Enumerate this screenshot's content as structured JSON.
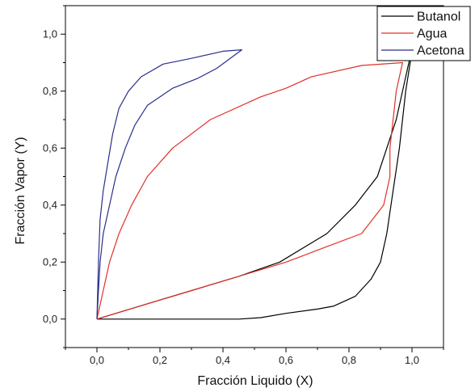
{
  "chart_data": {
    "type": "line",
    "xlabel": "Fracción Liquido (X)",
    "ylabel": "Fracción Vapor (Y)",
    "xlim": [
      -0.1,
      1.1
    ],
    "ylim": [
      -0.1,
      1.1
    ],
    "x_ticks": [
      "0,0",
      "0,2",
      "0,4",
      "0,6",
      "0,8",
      "1,0"
    ],
    "y_ticks": [
      "0,0",
      "0,2",
      "0,4",
      "0,6",
      "0,8",
      "1,0"
    ],
    "legend_position": "top-right",
    "series": [
      {
        "name": "Butanol",
        "color": "#000000",
        "points": [
          [
            0.0,
            0.0
          ],
          [
            0.1,
            0.0
          ],
          [
            0.3,
            0.0
          ],
          [
            0.45,
            0.0
          ],
          [
            0.52,
            0.005
          ],
          [
            0.6,
            0.02
          ],
          [
            0.7,
            0.035
          ],
          [
            0.75,
            0.045
          ],
          [
            0.82,
            0.08
          ],
          [
            0.87,
            0.14
          ],
          [
            0.9,
            0.2
          ],
          [
            0.92,
            0.3
          ],
          [
            0.94,
            0.45
          ],
          [
            0.96,
            0.6
          ],
          [
            0.97,
            0.7
          ],
          [
            0.98,
            0.8
          ],
          [
            0.99,
            0.87
          ],
          [
            1.0,
            0.94
          ],
          [
            0.99,
            0.9
          ],
          [
            0.97,
            0.8
          ],
          [
            0.95,
            0.7
          ],
          [
            0.92,
            0.6
          ],
          [
            0.89,
            0.5
          ],
          [
            0.82,
            0.4
          ],
          [
            0.73,
            0.3
          ],
          [
            0.58,
            0.2
          ],
          [
            0.45,
            0.15
          ],
          [
            0.3,
            0.1
          ],
          [
            0.15,
            0.05
          ],
          [
            0.0,
            0.0
          ]
        ]
      },
      {
        "name": "Agua",
        "color": "#e03028",
        "points": [
          [
            0.0,
            0.0
          ],
          [
            0.02,
            0.1
          ],
          [
            0.04,
            0.2
          ],
          [
            0.07,
            0.3
          ],
          [
            0.11,
            0.4
          ],
          [
            0.16,
            0.5
          ],
          [
            0.24,
            0.6
          ],
          [
            0.36,
            0.7
          ],
          [
            0.52,
            0.78
          ],
          [
            0.6,
            0.81
          ],
          [
            0.68,
            0.85
          ],
          [
            0.84,
            0.89
          ],
          [
            0.97,
            0.9
          ],
          [
            0.95,
            0.8
          ],
          [
            0.93,
            0.6
          ],
          [
            0.93,
            0.5
          ],
          [
            0.91,
            0.4
          ],
          [
            0.84,
            0.3
          ],
          [
            0.72,
            0.25
          ],
          [
            0.6,
            0.2
          ],
          [
            0.45,
            0.15
          ],
          [
            0.3,
            0.1
          ],
          [
            0.15,
            0.05
          ],
          [
            0.0,
            0.0
          ]
        ]
      },
      {
        "name": "Acetona",
        "color": "#2b2f8a",
        "points": [
          [
            0.0,
            0.0
          ],
          [
            0.005,
            0.2
          ],
          [
            0.01,
            0.35
          ],
          [
            0.02,
            0.45
          ],
          [
            0.035,
            0.55
          ],
          [
            0.05,
            0.65
          ],
          [
            0.07,
            0.74
          ],
          [
            0.1,
            0.8
          ],
          [
            0.14,
            0.85
          ],
          [
            0.21,
            0.895
          ],
          [
            0.3,
            0.915
          ],
          [
            0.4,
            0.94
          ],
          [
            0.46,
            0.945
          ],
          [
            0.38,
            0.88
          ],
          [
            0.32,
            0.845
          ],
          [
            0.24,
            0.81
          ],
          [
            0.16,
            0.75
          ],
          [
            0.12,
            0.68
          ],
          [
            0.09,
            0.6
          ],
          [
            0.06,
            0.5
          ],
          [
            0.04,
            0.4
          ],
          [
            0.02,
            0.3
          ],
          [
            0.01,
            0.2
          ],
          [
            0.005,
            0.1
          ],
          [
            0.0,
            0.0
          ]
        ]
      }
    ]
  }
}
